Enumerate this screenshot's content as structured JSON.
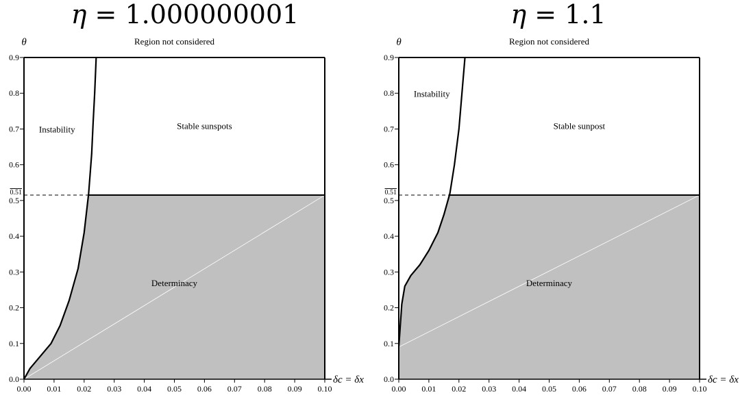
{
  "chart_data": [
    {
      "type": "area",
      "title": "η = 1.000000001",
      "title_symbol": "η",
      "title_value": "= 1.000000001",
      "xlabel": "δc = δx",
      "ylabel": "θ",
      "xlim": [
        0,
        0.1
      ],
      "ylim": [
        0,
        0.9
      ],
      "x_ticks": [
        "0.00",
        "0.01",
        "0.02",
        "0.03",
        "0.04",
        "0.05",
        "0.06",
        "0.07",
        "0.08",
        "0.09",
        "0.10"
      ],
      "y_ticks": [
        "0.0",
        "0.1",
        "0.2",
        "0.3",
        "0.4",
        "0.5",
        "0.6",
        "0.7",
        "0.8",
        "0.9"
      ],
      "threshold": {
        "label": "0.51",
        "value": 0.515
      },
      "boundary_curve": {
        "x": [
          0.0,
          0.002,
          0.005,
          0.009,
          0.012,
          0.015,
          0.018,
          0.02,
          0.0215,
          0.0225,
          0.023,
          0.0235,
          0.024
        ],
        "y": [
          0.0,
          0.03,
          0.06,
          0.1,
          0.15,
          0.22,
          0.31,
          0.41,
          0.52,
          0.63,
          0.72,
          0.8,
          0.9
        ]
      },
      "diagonal_line": {
        "x": [
          0.0,
          0.1
        ],
        "y": [
          0.0,
          0.515
        ]
      },
      "annotations": {
        "top": "Region not considered",
        "left": "Instability",
        "upper_right": "Stable sunspots",
        "shaded": "Determinacy"
      },
      "colors": {
        "shaded": "#c0c0c0",
        "line": "#000000",
        "diagonal": "#ffffff"
      }
    },
    {
      "type": "area",
      "title": "η = 1.1",
      "title_symbol": "η",
      "title_value": "= 1.1",
      "xlabel": "δc = δx",
      "ylabel": "θ",
      "xlim": [
        0,
        0.1
      ],
      "ylim": [
        0,
        0.9
      ],
      "x_ticks": [
        "0.00",
        "0.01",
        "0.02",
        "0.03",
        "0.04",
        "0.05",
        "0.06",
        "0.07",
        "0.08",
        "0.09",
        "0.10"
      ],
      "y_ticks": [
        "0.0",
        "0.1",
        "0.2",
        "0.3",
        "0.4",
        "0.5",
        "0.6",
        "0.7",
        "0.8",
        "0.9"
      ],
      "threshold": {
        "label": "0.51",
        "value": 0.515
      },
      "boundary_curve": {
        "x": [
          0.0,
          0.0005,
          0.001,
          0.002,
          0.004,
          0.007,
          0.01,
          0.013,
          0.015,
          0.017,
          0.0185,
          0.02,
          0.021,
          0.022
        ],
        "y": [
          0.09,
          0.15,
          0.21,
          0.26,
          0.29,
          0.32,
          0.36,
          0.41,
          0.46,
          0.52,
          0.6,
          0.7,
          0.8,
          0.9
        ]
      },
      "diagonal_line": {
        "x": [
          0.0,
          0.1
        ],
        "y": [
          0.09,
          0.515
        ]
      },
      "annotations": {
        "top": "Region not considered",
        "left": "Instability",
        "upper_right": "Stable sunpost",
        "shaded": "Determinacy"
      },
      "colors": {
        "shaded": "#c0c0c0",
        "line": "#000000",
        "diagonal": "#ffffff"
      }
    }
  ]
}
